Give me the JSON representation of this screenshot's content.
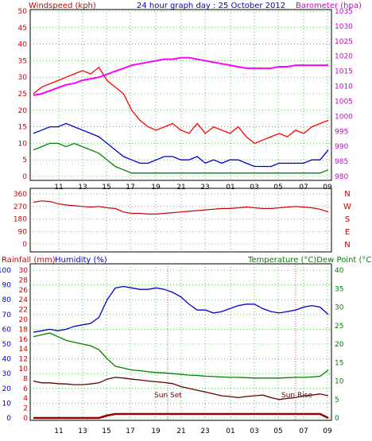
{
  "header": {
    "left": "Windspeed (kph)",
    "center": "24 hour graph day : 25 October 2012",
    "right": "Barometer (hpa)"
  },
  "colors": {
    "windspeed": "#ff0000",
    "avg_wind": "#0000cc",
    "low_wind": "#008000",
    "barometer": "#ff00ff",
    "direction": "#cc0000",
    "humidity": "#0000cc",
    "temperature": "#008000",
    "dewpoint": "#660000",
    "rainfall": "#990000",
    "left_axis": "#cc0000",
    "right_axis": "#cc00cc",
    "grid": "#008000"
  },
  "chart_data": [
    {
      "type": "line",
      "xlabels": [
        "11",
        "13",
        "15",
        "17",
        "19",
        "21",
        "23",
        "01",
        "03",
        "05",
        "07",
        "09"
      ],
      "left_axis": {
        "label": "Windspeed (kph)",
        "ylim": [
          0,
          50
        ],
        "ticks": [
          0,
          5,
          10,
          15,
          20,
          25,
          30,
          35,
          40,
          45,
          50
        ]
      },
      "right_axis": {
        "label": "Barometer (hpa)",
        "ylim": [
          980,
          1035
        ],
        "ticks": [
          980,
          985,
          990,
          995,
          1000,
          1005,
          1010,
          1015,
          1020,
          1025,
          1030,
          1035
        ]
      },
      "series": [
        {
          "role": "gust",
          "axis": "left",
          "values": [
            25,
            27,
            28,
            29,
            30,
            31,
            32,
            31,
            33,
            29,
            27,
            25,
            20,
            17,
            15,
            14,
            15,
            16,
            14,
            13,
            16,
            13,
            15,
            14,
            13,
            15,
            12,
            10,
            11,
            12,
            13,
            12,
            14,
            13,
            15,
            16,
            17
          ]
        },
        {
          "role": "average",
          "axis": "left",
          "values": [
            13,
            14,
            15,
            15,
            16,
            15,
            14,
            13,
            12,
            10,
            8,
            6,
            5,
            4,
            4,
            5,
            6,
            6,
            5,
            5,
            6,
            4,
            5,
            4,
            5,
            5,
            4,
            3,
            3,
            3,
            4,
            4,
            4,
            4,
            5,
            5,
            8
          ]
        },
        {
          "role": "low",
          "axis": "left",
          "values": [
            8,
            9,
            10,
            10,
            9,
            10,
            9,
            8,
            7,
            5,
            3,
            2,
            1,
            1,
            1,
            1,
            1,
            1,
            1,
            1,
            1,
            1,
            1,
            1,
            1,
            1,
            1,
            1,
            1,
            1,
            1,
            1,
            1,
            1,
            1,
            1,
            2
          ]
        },
        {
          "role": "barometer",
          "axis": "right",
          "values": [
            1007,
            1007.5,
            1008.5,
            1009.5,
            1010.5,
            1011,
            1012,
            1012.5,
            1013,
            1014,
            1015,
            1016,
            1017,
            1017.5,
            1018,
            1018.5,
            1019,
            1019,
            1019.5,
            1019.5,
            1019,
            1018.5,
            1018,
            1017.5,
            1017,
            1016.5,
            1016,
            1016,
            1016,
            1016,
            1016.5,
            1016.5,
            1017,
            1017,
            1017,
            1017,
            1017
          ]
        }
      ]
    },
    {
      "type": "line",
      "xlabels": [
        "11",
        "13",
        "15",
        "17",
        "19",
        "21",
        "23",
        "01",
        "03",
        "05",
        "07",
        "09"
      ],
      "left_axis": {
        "ylim": [
          0,
          360
        ],
        "ticks": [
          0,
          90,
          180,
          270,
          360
        ]
      },
      "right_axis": {
        "ticks": [
          "N",
          "W",
          "S",
          "E",
          "N"
        ]
      },
      "series": [
        {
          "role": "direction",
          "values": [
            300,
            310,
            305,
            290,
            280,
            275,
            270,
            265,
            270,
            260,
            255,
            230,
            220,
            220,
            215,
            215,
            220,
            225,
            230,
            235,
            240,
            245,
            250,
            255,
            255,
            260,
            265,
            260,
            255,
            255,
            260,
            265,
            270,
            265,
            260,
            250,
            230
          ]
        }
      ]
    },
    {
      "type": "line",
      "header_left": [
        "Rainfall (mm)",
        "Humidity (%)"
      ],
      "header_right": "Temperature (°C)Dew Point (°C)",
      "annotations": [
        "Sun Set",
        "Sun Rise"
      ],
      "xlabels": [
        "11",
        "13",
        "15",
        "17",
        "19",
        "21",
        "23",
        "01",
        "03",
        "05",
        "07",
        "09"
      ],
      "humidity_axis": {
        "ylim": [
          0,
          100
        ],
        "ticks": [
          0,
          10,
          20,
          30,
          40,
          50,
          60,
          70,
          80,
          90,
          100
        ]
      },
      "rain_axis": {
        "ylim": [
          0,
          30
        ],
        "ticks": [
          0,
          2,
          4,
          6,
          8,
          10,
          12,
          14,
          16,
          18,
          20,
          22,
          24,
          26,
          28,
          30
        ]
      },
      "temp_axis": {
        "ylim": [
          0,
          40
        ],
        "ticks": [
          0,
          5,
          10,
          15,
          20,
          25,
          30,
          35,
          40
        ]
      },
      "series": [
        {
          "role": "humidity",
          "axis": "humidity",
          "values": [
            58,
            59,
            60,
            59,
            60,
            62,
            63,
            64,
            68,
            80,
            88,
            89,
            88,
            87,
            87,
            88,
            87,
            85,
            82,
            77,
            73,
            73,
            71,
            72,
            74,
            76,
            77,
            77,
            74,
            72,
            71,
            72,
            73,
            75,
            76,
            75,
            70
          ]
        },
        {
          "role": "temperature",
          "axis": "temp",
          "values": [
            22,
            22.5,
            23,
            22,
            21,
            20.5,
            20,
            19.5,
            18.5,
            16,
            14,
            13.5,
            13,
            12.8,
            12.5,
            12.3,
            12.2,
            12,
            11.8,
            11.6,
            11.5,
            11.3,
            11.2,
            11.1,
            11,
            11,
            10.9,
            10.8,
            10.8,
            10.8,
            10.8,
            10.9,
            11,
            11,
            11.1,
            11.3,
            13
          ]
        },
        {
          "role": "dewpoint",
          "axis": "temp",
          "values": [
            10,
            9.5,
            9.5,
            9.3,
            9.2,
            9,
            9,
            9.2,
            9.5,
            10.5,
            11,
            10.8,
            10.5,
            10.3,
            10,
            9.8,
            9.6,
            9.3,
            8.5,
            8,
            7.5,
            7,
            6.5,
            6,
            5.8,
            5.5,
            5.8,
            6,
            6.2,
            5.5,
            5,
            5.3,
            5.5,
            6,
            6.2,
            6.5,
            6
          ]
        },
        {
          "role": "rainfall",
          "axis": "rain",
          "values": [
            0,
            0,
            0,
            0,
            0,
            0,
            0,
            0,
            0,
            0.5,
            0.8,
            0.8,
            0.8,
            0.8,
            0.8,
            0.8,
            0.8,
            0.8,
            0.8,
            0.8,
            0.8,
            0.8,
            0.8,
            0.8,
            0.8,
            0.8,
            0.8,
            0.8,
            0.8,
            0.8,
            0.8,
            0.8,
            0.8,
            0.8,
            0.8,
            0.8,
            0
          ]
        }
      ]
    }
  ]
}
